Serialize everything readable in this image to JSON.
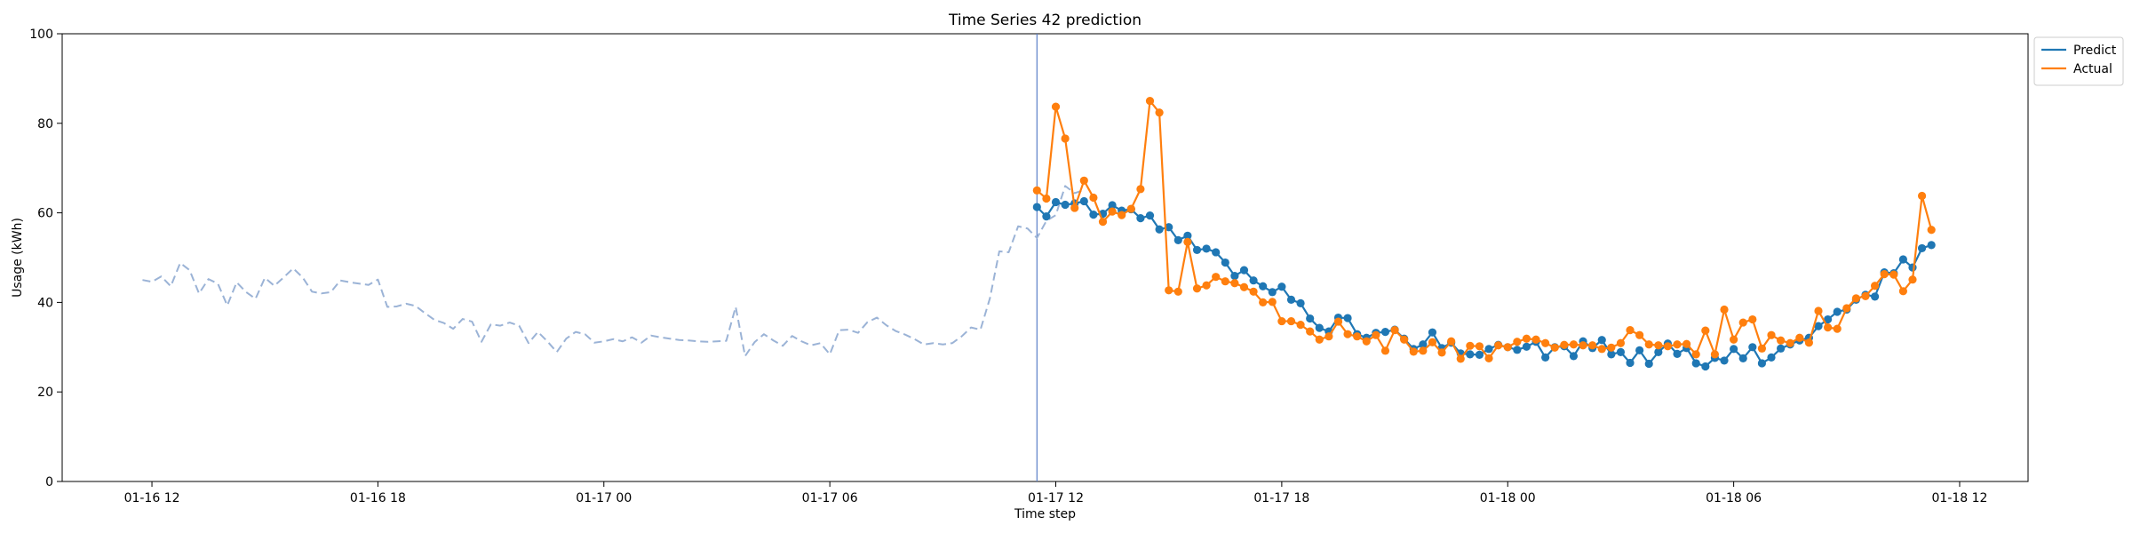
{
  "chart_data": {
    "type": "line",
    "title": "Time Series 42 prediction",
    "xlabel": "Time step",
    "ylabel": "Usage (kWh)",
    "ylim": [
      0,
      100
    ],
    "yticks": [
      0,
      20,
      40,
      60,
      80,
      100
    ],
    "xlim": [
      "2024-01-16 09:37",
      "2024-01-18 13:49"
    ],
    "xticks": [
      {
        "t": "2024-01-16 12:00",
        "label": "01-16 12"
      },
      {
        "t": "2024-01-16 18:00",
        "label": "01-16 18"
      },
      {
        "t": "2024-01-17 00:00",
        "label": "01-17 00"
      },
      {
        "t": "2024-01-17 06:00",
        "label": "01-17 06"
      },
      {
        "t": "2024-01-17 12:00",
        "label": "01-17 12"
      },
      {
        "t": "2024-01-17 18:00",
        "label": "01-17 18"
      },
      {
        "t": "2024-01-18 00:00",
        "label": "01-18 00"
      },
      {
        "t": "2024-01-18 06:00",
        "label": "01-18 06"
      },
      {
        "t": "2024-01-18 12:00",
        "label": "01-18 12"
      }
    ],
    "forecast_start": "2024-01-17 11:30",
    "legend_position": "top-right",
    "grid": false,
    "series": [
      {
        "name": "Predict",
        "color": "#1f77b4",
        "style": "solid-markers",
        "start": "2024-01-17 11:30",
        "step_minutes": 15,
        "values": [
          61.3,
          59.2,
          62.4,
          61.8,
          62.1,
          62.6,
          59.6,
          59.8,
          61.7,
          60.5,
          60.8,
          58.8,
          59.4,
          56.3,
          56.8,
          53.9,
          54.9,
          51.7,
          52.0,
          51.2,
          48.9,
          45.9,
          47.2,
          44.9,
          43.6,
          42.3,
          43.5,
          40.6,
          39.8,
          36.4,
          34.3,
          33.5,
          36.6,
          36.5,
          32.9,
          32.1,
          33.2,
          33.4,
          33.9,
          31.9,
          29.6,
          30.6,
          33.3,
          29.8,
          31.0,
          28.6,
          28.4,
          28.3,
          29.6,
          30.5,
          30.0,
          29.4,
          30.1,
          31.2,
          27.7,
          30.0,
          30.2,
          28.0,
          31.3,
          29.8,
          31.6,
          28.4,
          28.9,
          26.5,
          29.3,
          26.3,
          28.9,
          30.8,
          28.5,
          29.8,
          26.4,
          25.7,
          27.6,
          27.0,
          29.6,
          27.5,
          30.0,
          26.4,
          27.7,
          29.7,
          30.6,
          31.5,
          32.1,
          34.7,
          36.2,
          37.9,
          38.4,
          40.6,
          41.7,
          41.3,
          46.7,
          46.5,
          49.6,
          47.8,
          52.1,
          52.8
        ]
      },
      {
        "name": "Actual",
        "color": "#ff7f0e",
        "style": "solid-markers",
        "start": "2024-01-17 11:30",
        "step_minutes": 15,
        "values": [
          65.0,
          63.2,
          83.7,
          76.6,
          61.1,
          67.2,
          63.4,
          58.0,
          60.3,
          59.5,
          60.9,
          65.3,
          85.0,
          82.4,
          42.7,
          42.4,
          53.5,
          43.1,
          43.8,
          45.7,
          44.7,
          44.3,
          43.4,
          42.4,
          40.0,
          40.1,
          35.8,
          35.8,
          35.0,
          33.5,
          31.7,
          32.4,
          35.7,
          32.9,
          32.4,
          31.3,
          32.7,
          29.2,
          33.8,
          31.7,
          29.0,
          29.2,
          31.1,
          28.8,
          31.3,
          27.4,
          30.3,
          30.2,
          27.5,
          30.4,
          30.0,
          31.2,
          31.9,
          31.7,
          30.9,
          29.9,
          30.5,
          30.6,
          30.4,
          30.4,
          29.6,
          29.9,
          30.9,
          33.8,
          32.7,
          30.6,
          30.4,
          30.2,
          30.6,
          30.7,
          28.4,
          33.7,
          28.4,
          38.4,
          31.7,
          35.5,
          36.2,
          29.7,
          32.7,
          31.5,
          30.9,
          32.1,
          31.0,
          38.1,
          34.4,
          34.1,
          38.7,
          40.9,
          41.4,
          43.7,
          46.3,
          46.2,
          42.5,
          45.1,
          63.8,
          56.2
        ]
      },
      {
        "name": "",
        "color": "#9bb3d6",
        "style": "dashed",
        "start": "2024-01-16 11:45",
        "step_minutes": 15,
        "values": [
          45.0,
          44.6,
          45.8,
          43.6,
          48.8,
          47.2,
          42.0,
          45.2,
          44.2,
          39.3,
          44.5,
          42.3,
          40.8,
          45.5,
          43.7,
          45.6,
          47.6,
          45.6,
          42.4,
          42.0,
          42.3,
          44.9,
          44.5,
          44.2,
          43.9,
          45.1,
          39.0,
          39.1,
          39.7,
          39.2,
          37.6,
          36.1,
          35.4,
          34.1,
          36.3,
          35.7,
          31.2,
          35.1,
          34.8,
          35.5,
          34.8,
          30.9,
          33.4,
          31.3,
          28.9,
          31.9,
          33.4,
          32.9,
          31.0,
          31.3,
          31.8,
          31.3,
          32.2,
          31.0,
          32.6,
          32.2,
          31.9,
          31.6,
          31.5,
          31.3,
          31.2,
          31.3,
          31.4,
          39.0,
          28.0,
          31.1,
          32.9,
          31.5,
          30.3,
          32.5,
          31.3,
          30.4,
          30.9,
          28.4,
          33.8,
          33.9,
          33.2,
          35.6,
          36.6,
          34.9,
          33.6,
          32.8,
          31.8,
          30.6,
          30.9,
          30.6,
          30.9,
          32.4,
          34.4,
          33.9,
          40.9,
          51.4,
          51.2,
          57.0,
          56.5,
          54.4,
          58.2,
          59.5,
          66.0,
          64.4,
          65.1
        ]
      }
    ]
  }
}
